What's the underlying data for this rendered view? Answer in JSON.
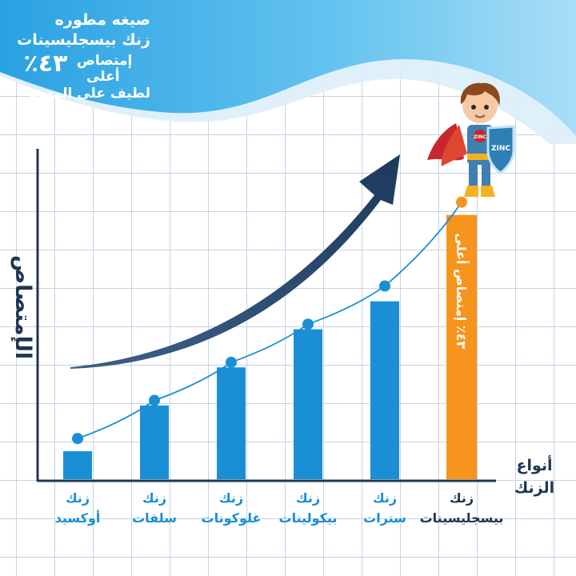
{
  "header": {
    "line1": "صيغه مطوره",
    "line2": "زنك بيسجليسينات",
    "percent": "٤٣٪",
    "absorb1": "إمتصاص",
    "absorb2": "أعلى",
    "line4": "لطيف على المعدة"
  },
  "hero": {
    "shield_text": "ZINC",
    "chest_text": "ZINC"
  },
  "chart_data": {
    "type": "bar",
    "ylabel": "الإمتصاص",
    "xlabel": [
      "أنواع",
      "الزنك"
    ],
    "categories": [
      [
        "زنك",
        "أوكسيد"
      ],
      [
        "زنك",
        "سلفات"
      ],
      [
        "زنك",
        "غلوكونات"
      ],
      [
        "زنك",
        "بيكولينات"
      ],
      [
        "زنك",
        "سترات"
      ],
      [
        "زنك",
        "بيسجليسينات"
      ]
    ],
    "values": [
      1.1,
      2.9,
      4.4,
      5.9,
      7.0,
      10.4
    ],
    "line_values": [
      1.6,
      3.1,
      4.6,
      6.1,
      7.6,
      10.9
    ],
    "bar_colors": [
      "#1a8fd5",
      "#1a8fd5",
      "#1a8fd5",
      "#1a8fd5",
      "#1a8fd5",
      "#f7941d"
    ],
    "point_color": "#1a8fd5",
    "highlight_point_color": "#f7941d",
    "highlight_bar_label": "٤٣٪ إمتصاص أعلى",
    "ylim": [
      0,
      13
    ],
    "grid": true
  }
}
